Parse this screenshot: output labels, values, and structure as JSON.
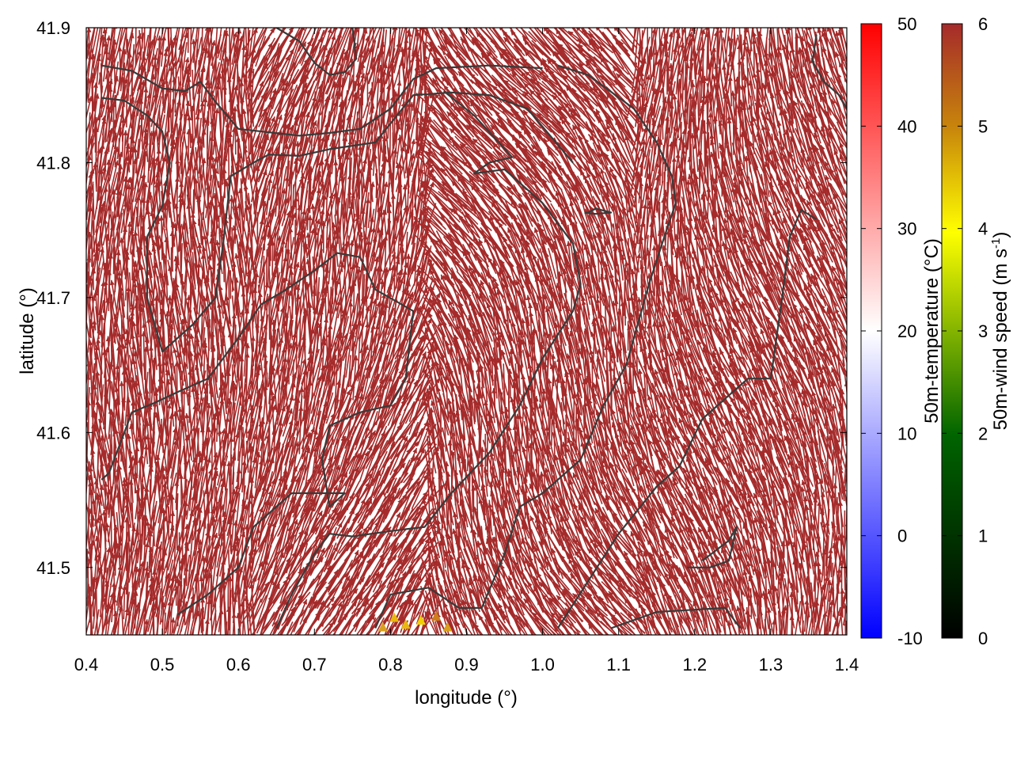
{
  "chart_data": {
    "type": "vector-field",
    "xlabel": "longitude (°)",
    "ylabel": "latitude (°)",
    "xlim": [
      0.4,
      1.4
    ],
    "ylim": [
      41.45,
      41.9
    ],
    "x_ticks": [
      "0.4",
      "0.5",
      "0.6",
      "0.7",
      "0.8",
      "0.9",
      "1.0",
      "1.1",
      "1.2",
      "1.3",
      "1.4"
    ],
    "y_ticks": [
      "41.5",
      "41.6",
      "41.7",
      "41.8",
      "41.9"
    ],
    "dominant_vector_color": "#a52a2a",
    "dominant_wind_speed": 6,
    "grid": false,
    "contours": [
      [
        [
          0.42,
          41.872
        ],
        [
          0.46,
          41.868
        ],
        [
          0.5,
          41.855
        ],
        [
          0.53,
          41.853
        ],
        [
          0.55,
          41.86
        ],
        [
          0.57,
          41.845
        ],
        [
          0.6,
          41.825
        ],
        [
          0.68,
          41.82
        ],
        [
          0.72,
          41.822
        ],
        [
          0.76,
          41.825
        ],
        [
          0.8,
          41.84
        ],
        [
          0.83,
          41.862
        ],
        [
          0.86,
          41.87
        ],
        [
          0.93,
          41.872
        ],
        [
          1.0,
          41.87
        ]
      ],
      [
        [
          0.42,
          41.848
        ],
        [
          0.45,
          41.846
        ],
        [
          0.48,
          41.835
        ],
        [
          0.5,
          41.823
        ],
        [
          0.51,
          41.8
        ],
        [
          0.5,
          41.768
        ],
        [
          0.48,
          41.745
        ],
        [
          0.48,
          41.7
        ],
        [
          0.5,
          41.66
        ],
        [
          0.54,
          41.68
        ],
        [
          0.57,
          41.7
        ],
        [
          0.58,
          41.74
        ],
        [
          0.59,
          41.79
        ],
        [
          0.62,
          41.8
        ],
        [
          0.64,
          41.806
        ],
        [
          0.68,
          41.805
        ],
        [
          0.72,
          41.81
        ],
        [
          0.78,
          41.815
        ],
        [
          0.83,
          41.85
        ],
        [
          0.88,
          41.852
        ],
        [
          0.93,
          41.85
        ],
        [
          0.98,
          41.84
        ],
        [
          1.04,
          41.8
        ]
      ],
      [
        [
          0.65,
          41.9
        ],
        [
          0.68,
          41.89
        ],
        [
          0.7,
          41.874
        ],
        [
          0.72,
          41.865
        ],
        [
          0.74,
          41.867
        ],
        [
          0.755,
          41.877
        ],
        [
          0.75,
          41.9
        ]
      ],
      [
        [
          0.42,
          41.565
        ],
        [
          0.43,
          41.57
        ],
        [
          0.46,
          41.615
        ],
        [
          0.49,
          41.622
        ],
        [
          0.52,
          41.63
        ],
        [
          0.56,
          41.64
        ],
        [
          0.6,
          41.67
        ],
        [
          0.63,
          41.695
        ],
        [
          0.66,
          41.705
        ],
        [
          0.7,
          41.72
        ],
        [
          0.73,
          41.733
        ],
        [
          0.76,
          41.73
        ],
        [
          0.78,
          41.706
        ],
        [
          0.83,
          41.69
        ],
        [
          0.82,
          41.64
        ],
        [
          0.8,
          41.62
        ],
        [
          0.76,
          41.615
        ],
        [
          0.72,
          41.605
        ],
        [
          0.71,
          41.58
        ],
        [
          0.72,
          41.545
        ],
        [
          0.74,
          41.555
        ],
        [
          0.67,
          41.555
        ],
        [
          0.62,
          41.53
        ],
        [
          0.6,
          41.5
        ],
        [
          0.56,
          41.48
        ],
        [
          0.52,
          41.465
        ]
      ],
      [
        [
          0.65,
          41.455
        ],
        [
          0.67,
          41.48
        ],
        [
          0.7,
          41.51
        ],
        [
          0.72,
          41.525
        ],
        [
          0.75,
          41.523
        ],
        [
          0.8,
          41.527
        ],
        [
          0.845,
          41.53
        ],
        [
          0.88,
          41.555
        ],
        [
          0.93,
          41.585
        ],
        [
          0.97,
          41.62
        ],
        [
          1.0,
          41.655
        ],
        [
          1.04,
          41.69
        ],
        [
          1.05,
          41.71
        ],
        [
          1.04,
          41.74
        ],
        [
          1.0,
          41.77
        ],
        [
          0.95,
          41.795
        ],
        [
          0.91,
          41.792
        ],
        [
          0.93,
          41.8
        ],
        [
          0.96,
          41.804
        ],
        [
          0.91,
          41.835
        ],
        [
          0.87,
          41.853
        ]
      ],
      [
        [
          0.78,
          41.455
        ],
        [
          0.8,
          41.48
        ],
        [
          0.85,
          41.485
        ],
        [
          0.89,
          41.47
        ],
        [
          0.92,
          41.47
        ],
        [
          0.95,
          41.51
        ],
        [
          0.97,
          41.545
        ],
        [
          1.0,
          41.555
        ],
        [
          1.05,
          41.58
        ],
        [
          1.08,
          41.62
        ],
        [
          1.11,
          41.65
        ],
        [
          1.14,
          41.71
        ],
        [
          1.16,
          41.745
        ],
        [
          1.175,
          41.77
        ],
        [
          1.17,
          41.79
        ],
        [
          1.15,
          41.815
        ],
        [
          1.12,
          41.84
        ],
        [
          1.06,
          41.865
        ],
        [
          1.02,
          41.872
        ]
      ],
      [
        [
          1.02,
          41.455
        ],
        [
          1.06,
          41.49
        ],
        [
          1.1,
          41.525
        ],
        [
          1.15,
          41.56
        ],
        [
          1.18,
          41.575
        ],
        [
          1.21,
          41.61
        ],
        [
          1.24,
          41.625
        ],
        [
          1.27,
          41.64
        ],
        [
          1.3,
          41.64
        ],
        [
          1.315,
          41.7
        ],
        [
          1.325,
          41.745
        ],
        [
          1.34,
          41.765
        ],
        [
          1.36,
          41.758
        ]
      ],
      [
        [
          1.19,
          41.5
        ],
        [
          1.22,
          41.5
        ],
        [
          1.245,
          41.505
        ],
        [
          1.255,
          41.53
        ],
        [
          1.245,
          41.52
        ],
        [
          1.21,
          41.505
        ]
      ],
      [
        [
          1.09,
          41.455
        ],
        [
          1.15,
          41.467
        ],
        [
          1.18,
          41.468
        ],
        [
          1.24,
          41.47
        ],
        [
          1.26,
          41.455
        ]
      ],
      [
        [
          1.06,
          41.763
        ],
        [
          1.07,
          41.766
        ],
        [
          1.09,
          41.763
        ],
        [
          1.07,
          41.762
        ],
        [
          1.055,
          41.763
        ]
      ],
      [
        [
          1.36,
          41.895
        ],
        [
          1.355,
          41.875
        ],
        [
          1.37,
          41.86
        ],
        [
          1.39,
          41.85
        ],
        [
          1.4,
          41.84
        ]
      ]
    ]
  },
  "temperature_colorbar": {
    "label": "50m-temperature (°C)",
    "range": [
      -10,
      50
    ],
    "ticks": [
      "-10",
      "0",
      "10",
      "20",
      "30",
      "40",
      "50"
    ],
    "colors": [
      "#0000ff",
      "#ffffff",
      "#ff0000"
    ]
  },
  "windspeed_colorbar": {
    "label_main": "50m-wind speed (m s",
    "label_sup": "-1",
    "label_end": ")",
    "range": [
      0,
      6
    ],
    "ticks": [
      "0",
      "1",
      "2",
      "3",
      "4",
      "5",
      "6"
    ],
    "colors": [
      "#000000",
      "#006400",
      "#ffff00",
      "#a52a2a"
    ]
  }
}
